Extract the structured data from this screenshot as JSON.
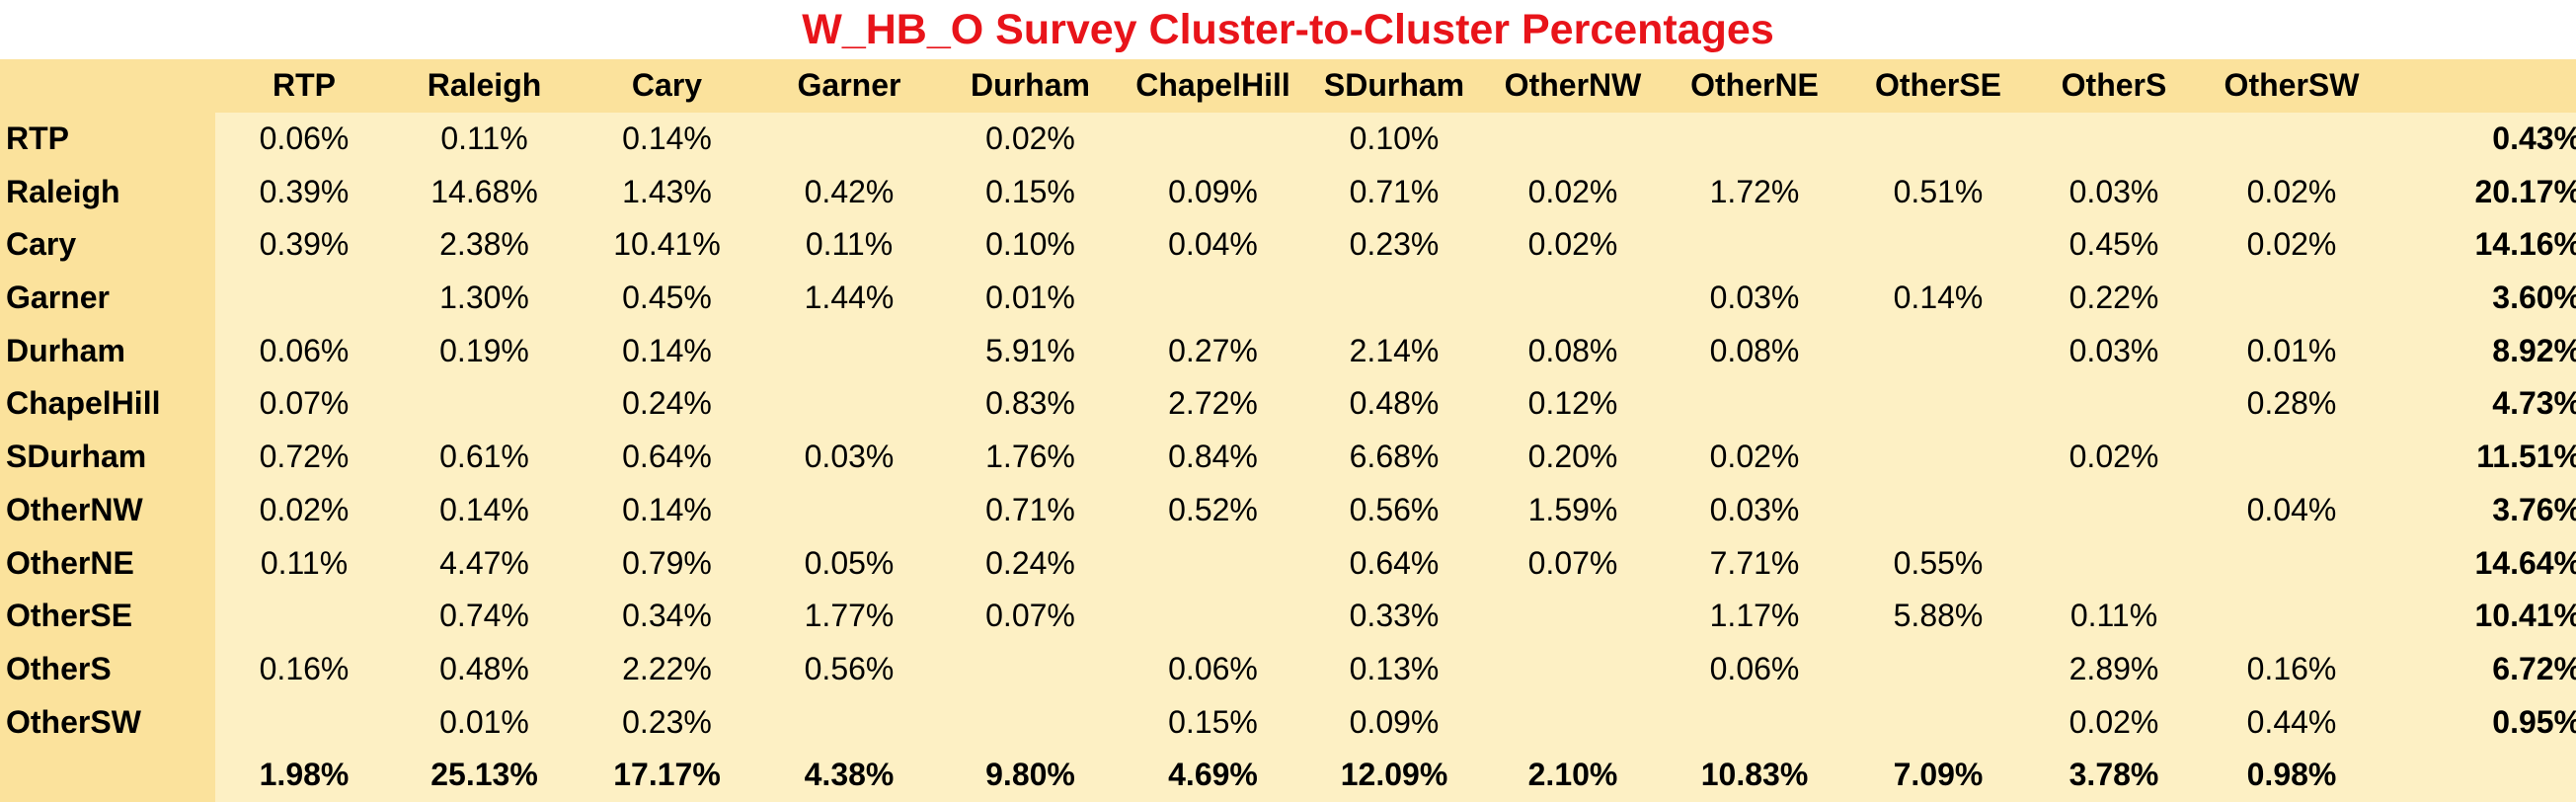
{
  "chart_data": {
    "type": "table",
    "title": "W_HB_O Survey Cluster-to-Cluster Percentages",
    "columns": [
      "RTP",
      "Raleigh",
      "Cary",
      "Garner",
      "Durham",
      "ChapelHill",
      "SDurham",
      "OtherNW",
      "OtherNE",
      "OtherSE",
      "OtherS",
      "OtherSW"
    ],
    "rows": [
      {
        "label": "RTP",
        "values": [
          "0.06%",
          "0.11%",
          "0.14%",
          "",
          "0.02%",
          "",
          "0.10%",
          "",
          "",
          "",
          "",
          ""
        ],
        "total": "0.43%"
      },
      {
        "label": "Raleigh",
        "values": [
          "0.39%",
          "14.68%",
          "1.43%",
          "0.42%",
          "0.15%",
          "0.09%",
          "0.71%",
          "0.02%",
          "1.72%",
          "0.51%",
          "0.03%",
          "0.02%"
        ],
        "total": "20.17%"
      },
      {
        "label": "Cary",
        "values": [
          "0.39%",
          "2.38%",
          "10.41%",
          "0.11%",
          "0.10%",
          "0.04%",
          "0.23%",
          "0.02%",
          "",
          "",
          "0.45%",
          "0.02%"
        ],
        "total": "14.16%"
      },
      {
        "label": "Garner",
        "values": [
          "",
          "1.30%",
          "0.45%",
          "1.44%",
          "0.01%",
          "",
          "",
          "",
          "0.03%",
          "0.14%",
          "0.22%",
          ""
        ],
        "total": "3.60%"
      },
      {
        "label": "Durham",
        "values": [
          "0.06%",
          "0.19%",
          "0.14%",
          "",
          "5.91%",
          "0.27%",
          "2.14%",
          "0.08%",
          "0.08%",
          "",
          "0.03%",
          "0.01%"
        ],
        "total": "8.92%"
      },
      {
        "label": "ChapelHill",
        "values": [
          "0.07%",
          "",
          "0.24%",
          "",
          "0.83%",
          "2.72%",
          "0.48%",
          "0.12%",
          "",
          "",
          "",
          "0.28%"
        ],
        "total": "4.73%"
      },
      {
        "label": "SDurham",
        "values": [
          "0.72%",
          "0.61%",
          "0.64%",
          "0.03%",
          "1.76%",
          "0.84%",
          "6.68%",
          "0.20%",
          "0.02%",
          "",
          "0.02%",
          ""
        ],
        "total": "11.51%"
      },
      {
        "label": "OtherNW",
        "values": [
          "0.02%",
          "0.14%",
          "0.14%",
          "",
          "0.71%",
          "0.52%",
          "0.56%",
          "1.59%",
          "0.03%",
          "",
          "",
          "0.04%"
        ],
        "total": "3.76%"
      },
      {
        "label": "OtherNE",
        "values": [
          "0.11%",
          "4.47%",
          "0.79%",
          "0.05%",
          "0.24%",
          "",
          "0.64%",
          "0.07%",
          "7.71%",
          "0.55%",
          "",
          ""
        ],
        "total": "14.64%"
      },
      {
        "label": "OtherSE",
        "values": [
          "",
          "0.74%",
          "0.34%",
          "1.77%",
          "0.07%",
          "",
          "0.33%",
          "",
          "1.17%",
          "5.88%",
          "0.11%",
          ""
        ],
        "total": "10.41%"
      },
      {
        "label": "OtherS",
        "values": [
          "0.16%",
          "0.48%",
          "2.22%",
          "0.56%",
          "",
          "0.06%",
          "0.13%",
          "",
          "0.06%",
          "",
          "2.89%",
          "0.16%"
        ],
        "total": "6.72%"
      },
      {
        "label": "OtherSW",
        "values": [
          "",
          "0.01%",
          "0.23%",
          "",
          "",
          "0.15%",
          "0.09%",
          "",
          "",
          "",
          "0.02%",
          "0.44%"
        ],
        "total": "0.95%"
      }
    ],
    "column_totals": [
      "1.98%",
      "25.13%",
      "17.17%",
      "4.38%",
      "9.80%",
      "4.69%",
      "12.09%",
      "2.10%",
      "10.83%",
      "7.09%",
      "3.78%",
      "0.98%"
    ],
    "colors": {
      "title": "#e8141a",
      "header_fill": "#fbe29c",
      "cell_fill": "#fdf0c4"
    }
  }
}
